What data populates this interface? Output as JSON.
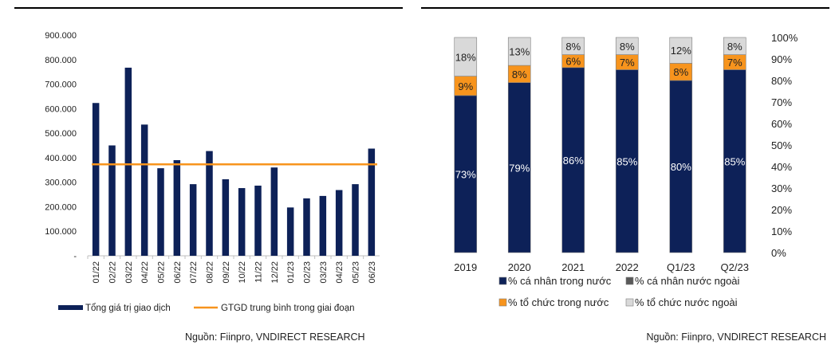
{
  "chart_data": [
    {
      "type": "bar",
      "title": "",
      "categories": [
        "01/22",
        "02/22",
        "03/22",
        "04/22",
        "05/22",
        "06/22",
        "07/22",
        "08/22",
        "09/22",
        "10/22",
        "11/22",
        "12/22",
        "01/23",
        "02/23",
        "03/23",
        "04/23",
        "05/23",
        "06/23"
      ],
      "series": [
        {
          "name": "Tổng giá trị giao dịch",
          "type": "bar",
          "color": "#0d2158",
          "values": [
            623000,
            450000,
            767000,
            535000,
            357000,
            390000,
            292000,
            427000,
            312000,
            276000,
            286000,
            360000,
            197000,
            234000,
            244000,
            268000,
            292000,
            437000
          ]
        },
        {
          "name": "GTGD trung bình trong giai đoạn",
          "type": "line",
          "color": "#f7941d",
          "value": 373000
        }
      ],
      "y_ticks": [
        "900.000",
        "800.000",
        "700.000",
        "600.000",
        "500.000",
        "400.000",
        "300.000",
        "200.000",
        "100.000",
        "-"
      ],
      "ylim": [
        0,
        900000
      ],
      "legend_position": "bottom",
      "source": "Nguồn: Fiinpro, VNDIRECT RESEARCH"
    },
    {
      "type": "bar",
      "stacked": true,
      "title": "",
      "categories": [
        "2019",
        "2020",
        "2021",
        "2022",
        "Q1/23",
        "Q2/23"
      ],
      "series": [
        {
          "name": "% cá nhân trong nước",
          "color": "#0d2158",
          "values": [
            73,
            79,
            86,
            85,
            80,
            85
          ],
          "labels": [
            "73%",
            "79%",
            "86%",
            "85%",
            "80%",
            "85%"
          ]
        },
        {
          "name": "% cá nhân nước ngoài",
          "color": "#595959",
          "values": [
            0,
            0,
            0,
            0,
            0,
            0
          ],
          "labels": [
            "",
            "",
            "",
            "",
            "",
            ""
          ]
        },
        {
          "name": "% tổ chức trong nước",
          "color": "#f7941d",
          "values": [
            9,
            8,
            6,
            7,
            8,
            7
          ],
          "labels": [
            "9%",
            "8%",
            "6%",
            "7%",
            "8%",
            "7%"
          ]
        },
        {
          "name": "% tổ chức nước ngoài",
          "color": "#d9d9d9",
          "values": [
            18,
            13,
            8,
            8,
            12,
            8
          ],
          "labels": [
            "18%",
            "13%",
            "8%",
            "8%",
            "12%",
            "8%"
          ]
        }
      ],
      "y_ticks": [
        "100%",
        "90%",
        "80%",
        "70%",
        "60%",
        "50%",
        "40%",
        "30%",
        "20%",
        "10%",
        "0%"
      ],
      "ylim": [
        0,
        100
      ],
      "y_axis_side": "right",
      "legend_position": "bottom",
      "source": "Nguồn: Fiinpro, VNDIRECT RESEARCH"
    }
  ]
}
